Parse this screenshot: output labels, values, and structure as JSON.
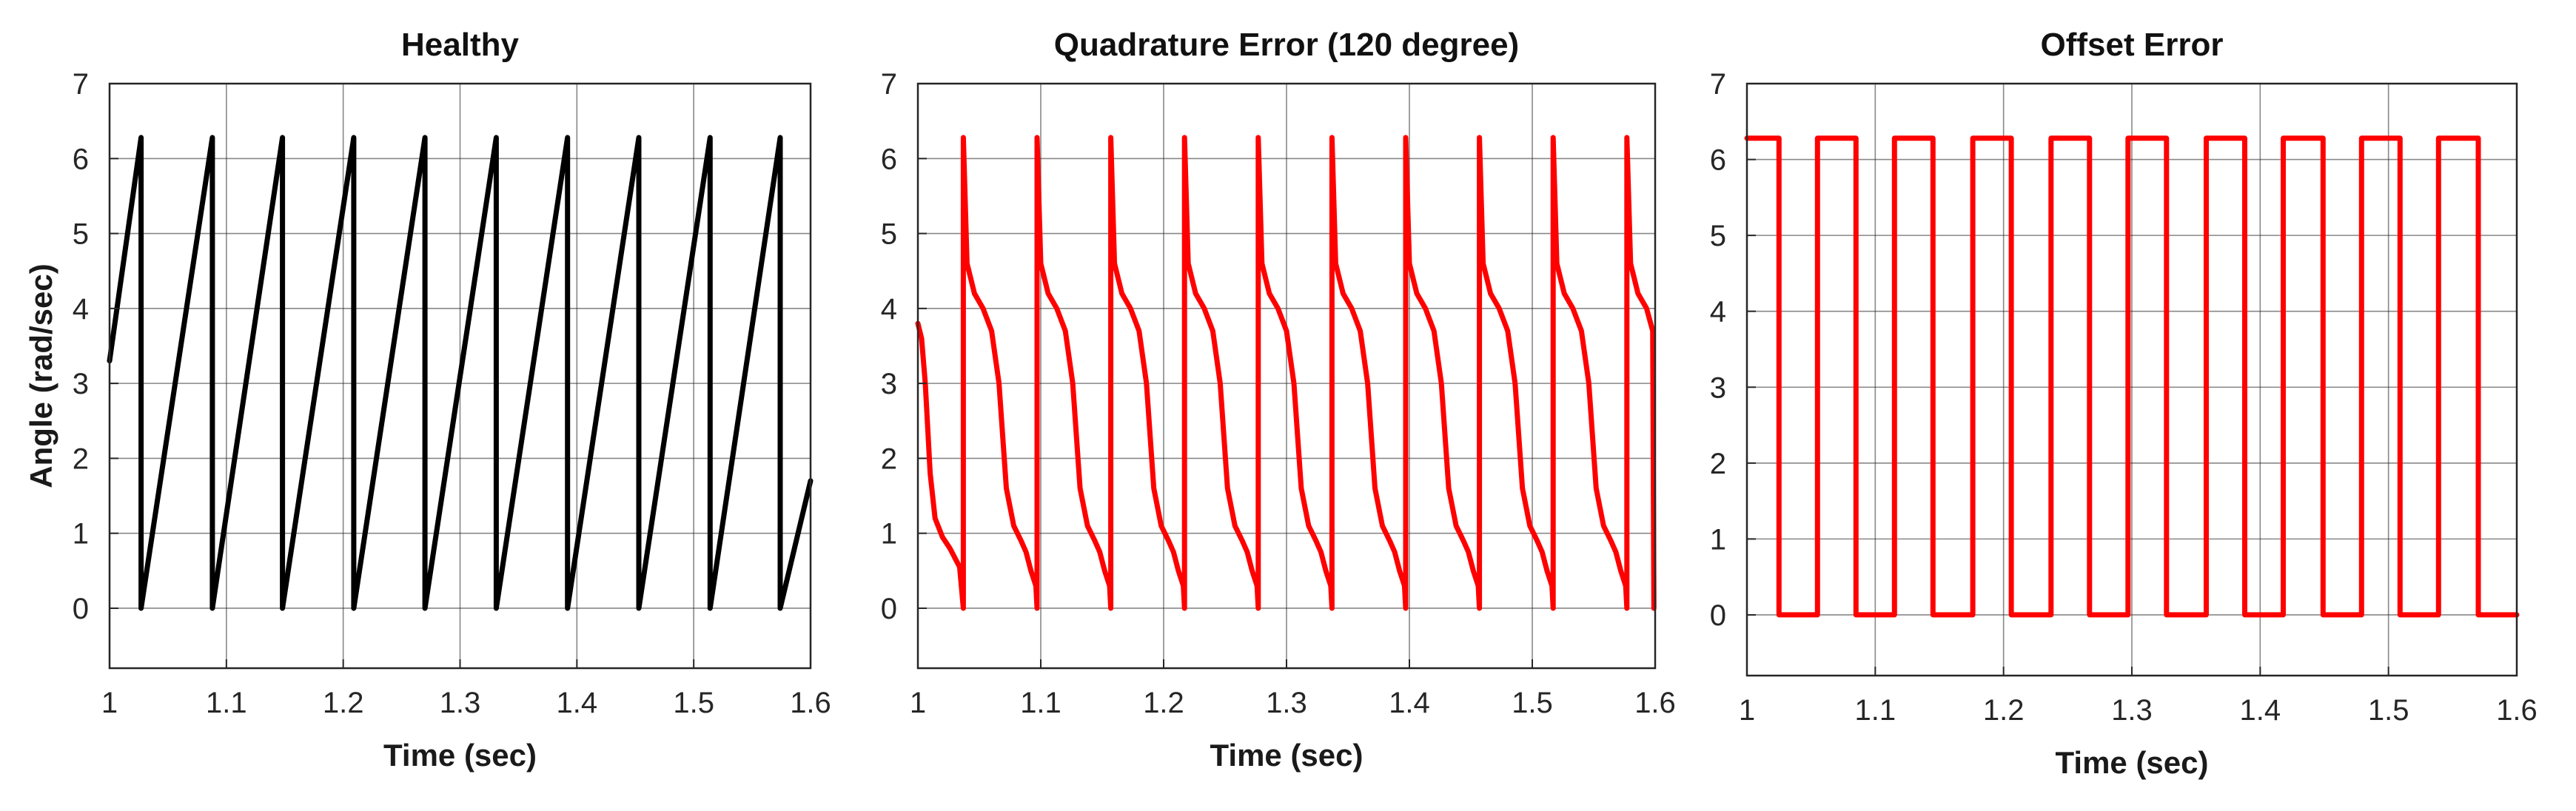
{
  "chart_data": [
    {
      "type": "line",
      "title": "Healthy",
      "xlabel": "Time (sec)",
      "ylabel": "Angle (rad/sec)",
      "xlim": [
        1,
        1.6
      ],
      "ylim": [
        -0.8,
        7
      ],
      "xticks": [
        "1",
        "1.1",
        "1.2",
        "1.3",
        "1.4",
        "1.5",
        "1.6"
      ],
      "yticks": [
        "0",
        "1",
        "2",
        "3",
        "4",
        "5",
        "6",
        "7"
      ],
      "grid": true,
      "series": [
        {
          "color": "#000000",
          "x": [
            1.0,
            1.027,
            1.027,
            1.088,
            1.088,
            1.148,
            1.148,
            1.209,
            1.209,
            1.27,
            1.27,
            1.331,
            1.331,
            1.392,
            1.392,
            1.453,
            1.453,
            1.514,
            1.514,
            1.574,
            1.574,
            1.6
          ],
          "y": [
            3.3,
            6.28,
            0,
            6.28,
            0,
            6.28,
            0,
            6.28,
            0,
            6.28,
            0,
            6.28,
            0,
            6.28,
            0,
            6.28,
            0,
            6.28,
            0,
            6.28,
            0,
            1.7
          ]
        }
      ]
    },
    {
      "type": "line",
      "title": "Quadrature Error (120 degree)",
      "xlabel": "Time (sec)",
      "ylabel": "",
      "xlim": [
        1,
        1.6
      ],
      "ylim": [
        -0.8,
        7
      ],
      "xticks": [
        "1",
        "1.1",
        "1.2",
        "1.3",
        "1.4",
        "1.5",
        "1.6"
      ],
      "yticks": [
        "0",
        "1",
        "2",
        "3",
        "4",
        "5",
        "6",
        "7"
      ],
      "grid": true,
      "series": [
        {
          "color": "#ff0000",
          "x": [
            1.0,
            1.003,
            1.006,
            1.01,
            1.014,
            1.02,
            1.026,
            1.034,
            1.037,
            1.037,
            1.04,
            1.046,
            1.053,
            1.06,
            1.066,
            1.072,
            1.078,
            1.084,
            1.088,
            1.092,
            1.096,
            1.097,
            1.097,
            1.1,
            1.106,
            1.113,
            1.12,
            1.126,
            1.132,
            1.138,
            1.144,
            1.148,
            1.152,
            1.156,
            1.157,
            1.157,
            1.16,
            1.166,
            1.173,
            1.18,
            1.186,
            1.192,
            1.198,
            1.204,
            1.208,
            1.212,
            1.216,
            1.217,
            1.217,
            1.22,
            1.226,
            1.233,
            1.24,
            1.246,
            1.252,
            1.258,
            1.264,
            1.268,
            1.272,
            1.276,
            1.277,
            1.277,
            1.28,
            1.286,
            1.293,
            1.3,
            1.306,
            1.312,
            1.318,
            1.324,
            1.328,
            1.332,
            1.336,
            1.337,
            1.337,
            1.34,
            1.346,
            1.353,
            1.36,
            1.366,
            1.372,
            1.378,
            1.384,
            1.388,
            1.392,
            1.396,
            1.397,
            1.397,
            1.4,
            1.406,
            1.413,
            1.42,
            1.426,
            1.432,
            1.438,
            1.444,
            1.448,
            1.452,
            1.456,
            1.457,
            1.457,
            1.46,
            1.466,
            1.473,
            1.48,
            1.486,
            1.492,
            1.498,
            1.504,
            1.508,
            1.512,
            1.516,
            1.517,
            1.517,
            1.52,
            1.526,
            1.533,
            1.54,
            1.546,
            1.552,
            1.558,
            1.564,
            1.568,
            1.572,
            1.576,
            1.577,
            1.577,
            1.58,
            1.586,
            1.593,
            1.598,
            1.599
          ],
          "y": [
            3.8,
            3.6,
            3.0,
            1.8,
            1.2,
            0.95,
            0.8,
            0.55,
            0.0,
            6.28,
            4.6,
            4.2,
            4.0,
            3.7,
            3.0,
            1.6,
            1.1,
            0.9,
            0.75,
            0.5,
            0.3,
            0.0,
            6.28,
            4.6,
            4.2,
            4.0,
            3.7,
            3.0,
            1.6,
            1.1,
            0.9,
            0.75,
            0.5,
            0.3,
            0.0,
            6.28,
            4.6,
            4.2,
            4.0,
            3.7,
            3.0,
            1.6,
            1.1,
            0.9,
            0.75,
            0.5,
            0.3,
            0.0,
            6.28,
            4.6,
            4.2,
            4.0,
            3.7,
            3.0,
            1.6,
            1.1,
            0.9,
            0.75,
            0.5,
            0.3,
            0.0,
            6.28,
            4.6,
            4.2,
            4.0,
            3.7,
            3.0,
            1.6,
            1.1,
            0.9,
            0.75,
            0.5,
            0.3,
            0.0,
            6.28,
            4.6,
            4.2,
            4.0,
            3.7,
            3.0,
            1.6,
            1.1,
            0.9,
            0.75,
            0.5,
            0.3,
            0.0,
            6.28,
            4.6,
            4.2,
            4.0,
            3.7,
            3.0,
            1.6,
            1.1,
            0.9,
            0.75,
            0.5,
            0.3,
            0.0,
            6.28,
            4.6,
            4.2,
            4.0,
            3.7,
            3.0,
            1.6,
            1.1,
            0.9,
            0.75,
            0.5,
            0.3,
            0.0,
            6.28,
            4.6,
            4.2,
            4.0,
            3.7,
            3.0,
            1.6,
            1.1,
            0.9,
            0.75,
            0.5,
            0.3,
            0.0,
            6.28,
            4.6,
            4.2,
            4.0,
            3.7,
            0.0
          ]
        }
      ]
    },
    {
      "type": "line",
      "title": "Offset Error",
      "xlabel": "Time (sec)",
      "ylabel": "",
      "xlim": [
        1,
        1.6
      ],
      "ylim": [
        -0.8,
        7
      ],
      "xticks": [
        "1",
        "1.1",
        "1.2",
        "1.3",
        "1.4",
        "1.5",
        "1.6"
      ],
      "yticks": [
        "0",
        "1",
        "2",
        "3",
        "4",
        "5",
        "6",
        "7"
      ],
      "grid": true,
      "series": [
        {
          "color": "#ff0000",
          "x": [
            1.0,
            1.025,
            1.025,
            1.055,
            1.055,
            1.085,
            1.085,
            1.115,
            1.115,
            1.145,
            1.145,
            1.176,
            1.176,
            1.206,
            1.206,
            1.237,
            1.237,
            1.267,
            1.267,
            1.297,
            1.297,
            1.327,
            1.327,
            1.358,
            1.358,
            1.388,
            1.388,
            1.418,
            1.418,
            1.449,
            1.449,
            1.479,
            1.479,
            1.509,
            1.509,
            1.539,
            1.539,
            1.57,
            1.57,
            1.6
          ],
          "y": [
            6.28,
            6.28,
            0,
            0,
            6.28,
            6.28,
            0,
            0,
            6.28,
            6.28,
            0,
            0,
            6.28,
            6.28,
            0,
            0,
            6.28,
            6.28,
            0,
            0,
            6.28,
            6.28,
            0,
            0,
            6.28,
            6.28,
            0,
            0,
            6.28,
            6.28,
            0,
            0,
            6.28,
            6.28,
            0,
            0,
            6.28,
            6.28,
            0,
            0
          ]
        }
      ]
    }
  ]
}
